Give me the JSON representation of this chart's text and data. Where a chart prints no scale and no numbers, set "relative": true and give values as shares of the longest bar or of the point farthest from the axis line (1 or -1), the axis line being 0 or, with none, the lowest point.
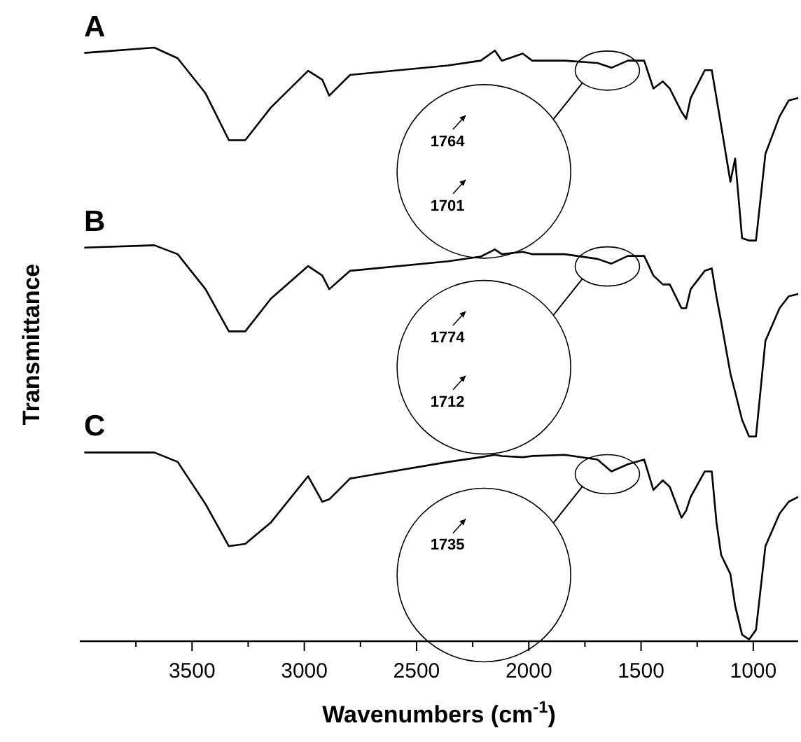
{
  "chart_data": {
    "type": "line",
    "xlabel": "Wavenumbers (cm$^{-1}$)",
    "ylabel": "Transmittance",
    "relative": true,
    "x": [
      3980,
      3668,
      3564,
      3440,
      3336,
      3263,
      3149,
      2983,
      2920,
      2889,
      2796,
      2359,
      2214,
      2151,
      2120,
      2027,
      1985,
      1840,
      1694,
      1632,
      1559,
      1486,
      1445,
      1403,
      1372,
      1320,
      1299,
      1279,
      1216,
      1185,
      1164,
      1143,
      1102,
      1081,
      1050,
      1019,
      988,
      946,
      883,
      842,
      800
    ],
    "xlim": [
      4000,
      800
    ],
    "xticks": [
      {
        "value": 3750,
        "label": null
      },
      3500,
      {
        "value": 3250,
        "label": null
      },
      3000,
      {
        "value": 2750,
        "label": null
      },
      2500,
      {
        "value": 2250,
        "label": null
      },
      2000,
      {
        "value": 1750,
        "label": null
      },
      1500,
      {
        "value": 1250,
        "label": null
      },
      1000
    ],
    "series": [
      {
        "name": "A",
        "color": "#000000",
        "values": [
          0.991,
          1.0,
          0.982,
          0.923,
          0.844,
          0.844,
          0.899,
          0.961,
          0.946,
          0.919,
          0.954,
          0.97,
          0.978,
          0.995,
          0.978,
          0.99,
          0.978,
          0.978,
          0.974,
          0.966,
          0.978,
          0.978,
          0.931,
          0.943,
          0.931,
          0.892,
          0.88,
          0.915,
          0.962,
          0.962,
          0.915,
          0.868,
          0.774,
          0.813,
          0.679,
          0.675,
          0.675,
          0.821,
          0.884,
          0.911,
          0.915
        ]
      },
      {
        "name": "B",
        "color": "#000000",
        "values": [
          0.663,
          0.667,
          0.652,
          0.593,
          0.522,
          0.522,
          0.577,
          0.632,
          0.616,
          0.593,
          0.624,
          0.64,
          0.648,
          0.66,
          0.652,
          0.656,
          0.652,
          0.652,
          0.644,
          0.636,
          0.649,
          0.649,
          0.616,
          0.601,
          0.601,
          0.561,
          0.561,
          0.593,
          0.624,
          0.628,
          0.58,
          0.538,
          0.451,
          0.42,
          0.373,
          0.345,
          0.345,
          0.506,
          0.561,
          0.581,
          0.585
        ]
      },
      {
        "name": "C",
        "color": "#000000",
        "values": [
          0.318,
          0.318,
          0.302,
          0.231,
          0.16,
          0.164,
          0.2,
          0.278,
          0.235,
          0.239,
          0.274,
          0.302,
          0.31,
          0.314,
          0.312,
          0.31,
          0.312,
          0.314,
          0.306,
          0.286,
          0.298,
          0.306,
          0.255,
          0.271,
          0.26,
          0.208,
          0.22,
          0.243,
          0.286,
          0.286,
          0.2,
          0.145,
          0.113,
          0.06,
          0.011,
          0.003,
          0.019,
          0.16,
          0.215,
          0.235,
          0.243
        ]
      }
    ],
    "annotations": [
      "1764",
      "1701",
      "1774",
      "1712",
      "1735"
    ],
    "grid": false,
    "marker": "none",
    "line_style": "solid"
  }
}
